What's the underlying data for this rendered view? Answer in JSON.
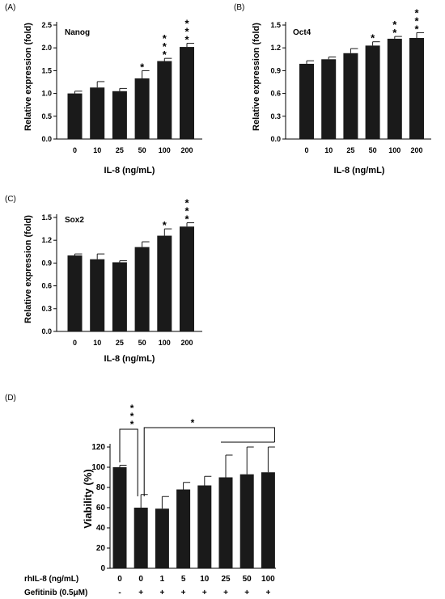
{
  "panels": {
    "A": {
      "label": "(A)"
    },
    "B": {
      "label": "(B)"
    },
    "C": {
      "label": "(C)"
    },
    "D": {
      "label": "(D)"
    }
  },
  "chart_data": [
    {
      "id": "A",
      "type": "bar",
      "title": "Nanog",
      "xlabel": "IL-8 (ng/mL)",
      "ylabel": "Relative expression (fold)",
      "categories": [
        "0",
        "10",
        "25",
        "50",
        "100",
        "200"
      ],
      "values": [
        1.0,
        1.13,
        1.05,
        1.33,
        1.71,
        2.02
      ],
      "errors": [
        0.05,
        0.13,
        0.06,
        0.17,
        0.06,
        0.08
      ],
      "significance": [
        "",
        "",
        "",
        "*",
        "***",
        "***"
      ],
      "ylim": [
        0,
        2.5
      ],
      "yticks": [
        "0.0",
        "0.5",
        "1.0",
        "1.5",
        "2.0",
        "2.5"
      ],
      "grid": false
    },
    {
      "id": "B",
      "type": "bar",
      "title": "Oct4",
      "xlabel": "IL-8 (ng/mL)",
      "ylabel": "Relative expression (fold)",
      "categories": [
        "0",
        "10",
        "25",
        "50",
        "100",
        "200"
      ],
      "values": [
        0.99,
        1.05,
        1.13,
        1.23,
        1.32,
        1.33
      ],
      "errors": [
        0.04,
        0.03,
        0.06,
        0.05,
        0.03,
        0.07
      ],
      "significance": [
        "",
        "",
        "",
        "*",
        "**",
        "***"
      ],
      "ylim": [
        0,
        1.5
      ],
      "yticks": [
        "0.0",
        "0.3",
        "0.6",
        "0.9",
        "1.2",
        "1.5"
      ],
      "grid": false
    },
    {
      "id": "C",
      "type": "bar",
      "title": "Sox2",
      "xlabel": "IL-8 (ng/mL)",
      "ylabel": "Relative expression (fold)",
      "categories": [
        "0",
        "10",
        "25",
        "50",
        "100",
        "200"
      ],
      "values": [
        1.0,
        0.95,
        0.91,
        1.11,
        1.26,
        1.38
      ],
      "errors": [
        0.02,
        0.07,
        0.02,
        0.07,
        0.09,
        0.05
      ],
      "significance": [
        "",
        "",
        "",
        "",
        "*",
        "***"
      ],
      "ylim": [
        0,
        1.5
      ],
      "yticks": [
        "0.0",
        "0.3",
        "0.6",
        "0.9",
        "1.2",
        "1.5"
      ],
      "grid": false
    },
    {
      "id": "D",
      "type": "bar",
      "title": "",
      "xlabel": "",
      "ylabel": "Viability (%)",
      "categories": [
        "0",
        "0",
        "1",
        "5",
        "10",
        "25",
        "50",
        "100"
      ],
      "values": [
        100,
        60,
        59,
        78,
        82,
        90,
        93,
        95
      ],
      "errors": [
        2,
        13,
        12,
        7,
        9,
        22,
        27,
        25
      ],
      "ylim": [
        0,
        120
      ],
      "yticks": [
        "0",
        "20",
        "40",
        "60",
        "80",
        "100",
        "120"
      ],
      "grid": false,
      "row_labels": [
        "rhIL-8 (ng/mL)",
        "Gefitinib (0.5μM)"
      ],
      "gefitinib": [
        "-",
        "+",
        "+",
        "+",
        "+",
        "+",
        "+",
        "+"
      ],
      "brackets": [
        {
          "from": 0,
          "to": 1,
          "label": "***"
        },
        {
          "from": 1,
          "to_range": [
            5,
            7
          ],
          "label": "*"
        }
      ]
    }
  ]
}
